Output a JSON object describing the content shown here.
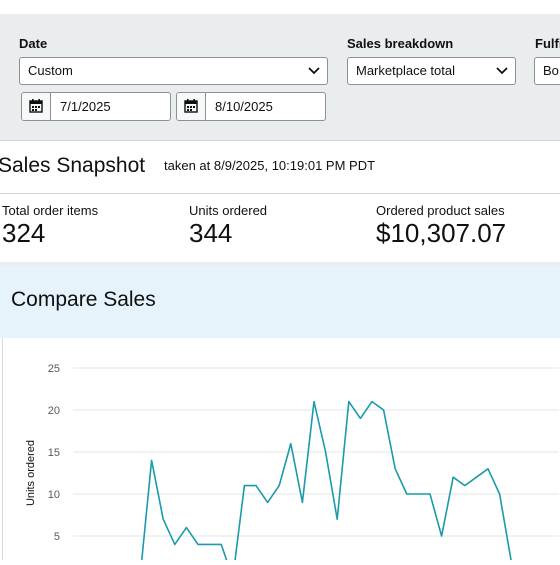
{
  "filters": {
    "date": {
      "label": "Date",
      "selected": "Custom",
      "start_date": "7/1/2025",
      "end_date": "8/10/2025"
    },
    "sales_breakdown": {
      "label": "Sales breakdown",
      "selected": "Marketplace total"
    },
    "fulfillment": {
      "label": "Fulfi",
      "selected": "Bo"
    }
  },
  "snapshot": {
    "title": "Sales Snapshot",
    "taken_at": "taken at 8/9/2025, 10:19:01 PM PDT",
    "metrics": [
      {
        "label": "Total order items",
        "value": "324"
      },
      {
        "label": "Units ordered",
        "value": "344"
      },
      {
        "label": "Ordered product sales",
        "value": "$10,307.07"
      }
    ]
  },
  "compare": {
    "title": "Compare Sales"
  },
  "colors": {
    "line": "#1a9aaa",
    "panel": "#eaeded",
    "header": "#e6f3fb"
  },
  "chart_data": {
    "type": "line",
    "ylabel": "Units ordered",
    "xlabel": "",
    "ylim": [
      0,
      25
    ],
    "yticks": [
      5,
      10,
      15,
      20,
      25
    ],
    "grid": true,
    "series": [
      {
        "values": [
          0,
          14,
          7,
          4,
          6,
          4,
          4,
          4,
          0,
          11,
          11,
          9,
          11,
          16,
          9,
          21,
          15,
          7,
          21,
          19,
          21,
          20,
          13,
          10,
          10,
          10,
          5,
          12,
          11,
          12,
          13,
          10,
          2
        ]
      }
    ]
  }
}
